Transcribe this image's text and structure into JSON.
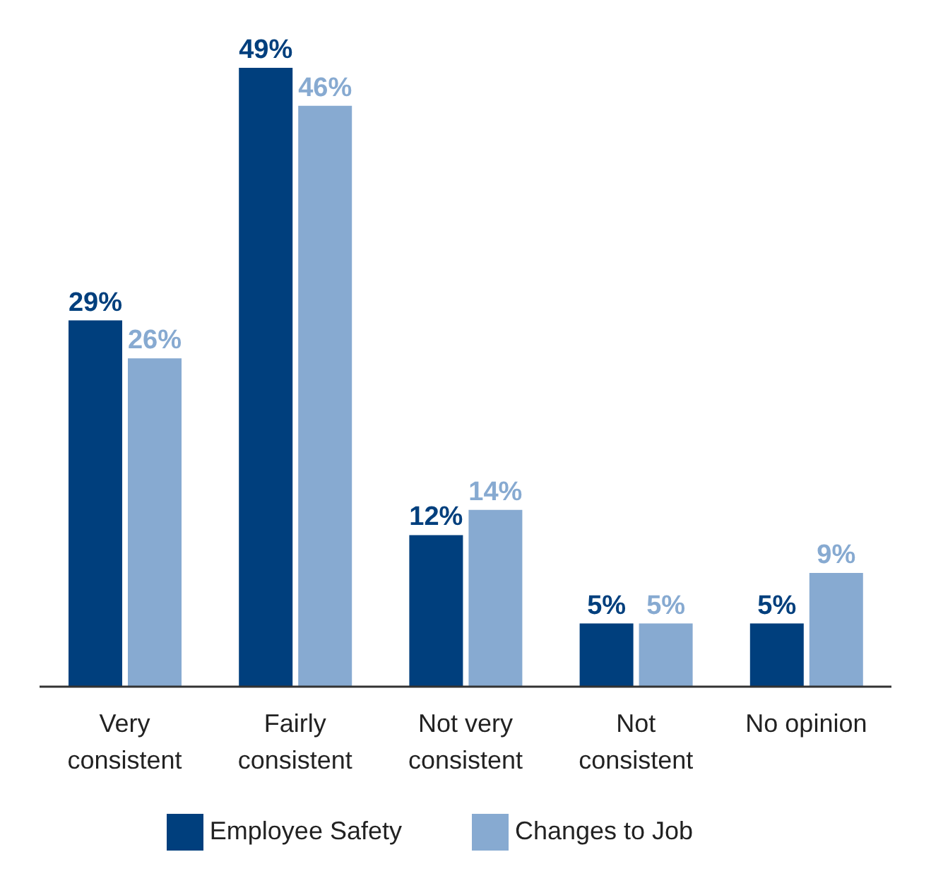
{
  "chart_data": {
    "type": "bar",
    "categories": [
      "Very consistent",
      "Fairly consistent",
      "Not very consistent",
      "Not consistent",
      "No opinion"
    ],
    "series": [
      {
        "name": "Employee Safety",
        "color": "#003f7d",
        "values": [
          29,
          49,
          12,
          5,
          5
        ],
        "value_labels": [
          "29%",
          "49%",
          "12%",
          "5%",
          "5%"
        ]
      },
      {
        "name": "Changes to Job",
        "color": "#87aad1",
        "values": [
          26,
          46,
          14,
          5,
          9
        ],
        "value_labels": [
          "26%",
          "46%",
          "14%",
          "5%",
          "9%"
        ]
      }
    ],
    "legend": "bottom",
    "grid": false
  }
}
